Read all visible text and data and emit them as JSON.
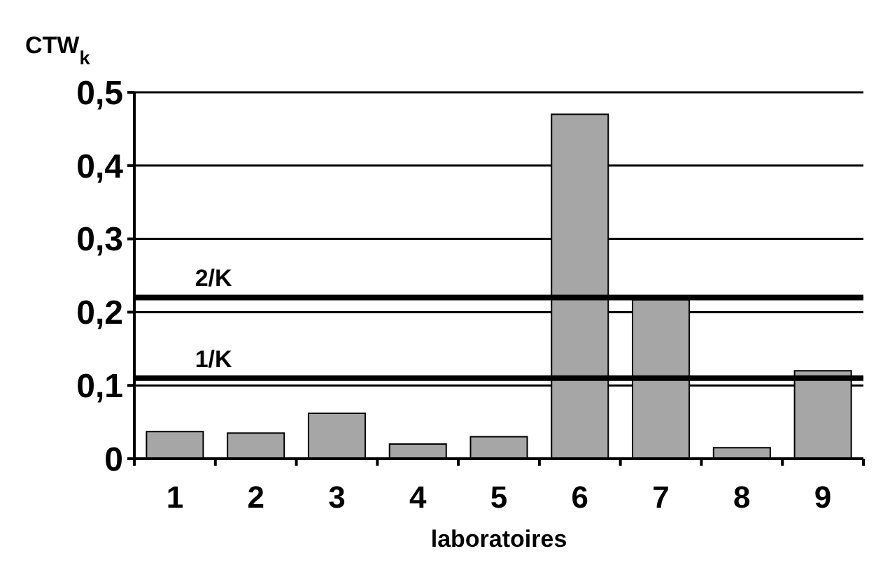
{
  "chart_data": {
    "type": "bar",
    "ylabel": "CTW$_{k}$",
    "xlabel": "laboratoires",
    "categories": [
      "1",
      "2",
      "3",
      "4",
      "5",
      "6",
      "7",
      "8",
      "9"
    ],
    "values": [
      0.037,
      0.035,
      0.062,
      0.02,
      0.03,
      0.47,
      0.217,
      0.015,
      0.12
    ],
    "color": "#a6a6a6",
    "ylim": [
      0,
      0.5
    ],
    "yticks": [
      {
        "value": 0,
        "label": "0"
      },
      {
        "value": 0.1,
        "label": "0,1"
      },
      {
        "value": 0.2,
        "label": "0,2"
      },
      {
        "value": 0.3,
        "label": "0,3"
      },
      {
        "value": 0.4,
        "label": "0,4"
      },
      {
        "value": 0.5,
        "label": "0,5"
      }
    ],
    "grid": "y",
    "ref_lines": [
      {
        "axis": "y",
        "value": 0.22,
        "label": "2/K"
      },
      {
        "axis": "y",
        "value": 0.11,
        "label": "1/K"
      }
    ]
  }
}
